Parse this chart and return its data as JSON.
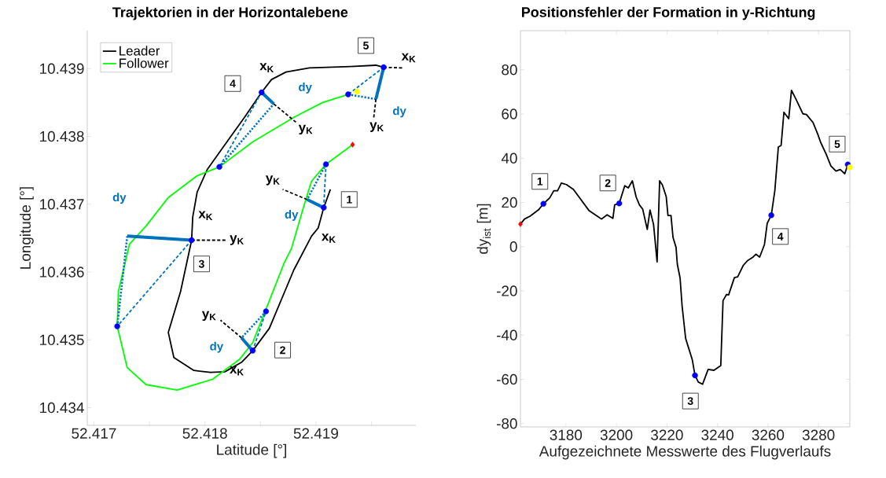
{
  "chart_data": [
    {
      "type": "line",
      "title": "Trajektorien in der Horizontalebene",
      "xlabel": "Latitude [°]",
      "ylabel": "Longitude [°]",
      "xlim": [
        52.41694,
        52.4199
      ],
      "ylim": [
        10.43374,
        10.43956
      ],
      "xticks": [
        52.417,
        {
          "value": 52.4175,
          "label": null
        },
        52.418,
        {
          "value": 52.4185,
          "label": null
        },
        52.419,
        {
          "value": 52.4195,
          "label": null
        }
      ],
      "yticks": [
        10.434,
        10.435,
        10.436,
        10.437,
        10.438,
        10.439
      ],
      "legend": "top left",
      "series": [
        {
          "name": "Leader",
          "color": "#000000",
          "x": [
            52.41913,
            52.41907,
            52.41902,
            52.41896,
            52.4188,
            52.41858,
            52.41843,
            52.41833,
            52.41818,
            52.41805,
            52.4179,
            52.41772,
            52.41767,
            52.41778,
            52.41788,
            52.41789,
            52.41793,
            52.41802,
            52.41818,
            52.41836,
            52.41851,
            52.4186,
            52.41873,
            52.41894,
            52.41931,
            52.41954,
            52.41961
          ],
          "values": [
            10.43722,
            10.43695,
            10.43665,
            10.43653,
            10.43603,
            10.43517,
            10.43484,
            10.43467,
            10.43453,
            10.43452,
            10.43455,
            10.43474,
            10.43511,
            10.43571,
            10.43647,
            10.43681,
            10.43718,
            10.43751,
            10.43788,
            10.43829,
            10.43865,
            10.43884,
            10.43895,
            10.43901,
            10.43903,
            10.43905,
            10.43902
          ]
        },
        {
          "name": "Follower",
          "color": "#00ff00",
          "x": [
            52.41933,
            52.41909,
            52.41896,
            52.41889,
            52.41878,
            52.41871,
            52.4186,
            52.41853,
            52.41843,
            52.41831,
            52.41807,
            52.41775,
            52.41747,
            52.4173,
            52.41721,
            52.41722,
            52.41732,
            52.41747,
            52.41767,
            52.41793,
            52.41813,
            52.41843,
            52.41881,
            52.41906,
            52.41929
          ],
          "values": [
            10.43788,
            10.43759,
            10.43734,
            10.43697,
            10.43635,
            10.43612,
            10.43566,
            10.43537,
            10.43496,
            10.43471,
            10.43442,
            10.43426,
            10.43434,
            10.43459,
            10.4352,
            10.43571,
            10.43641,
            10.43668,
            10.4371,
            10.43742,
            10.43755,
            10.43792,
            10.43829,
            10.4385,
            10.43862
          ]
        },
        {
          "color": "#0072bd",
          "line_style": "dashed",
          "x": [
            52.41907,
            52.41909,
            null,
            52.41843,
            52.41855,
            null,
            52.41788,
            52.41721,
            null,
            52.41851,
            52.41813,
            null,
            52.41961,
            52.41929
          ],
          "values": [
            10.43695,
            10.43759,
            null,
            10.43484,
            10.43542,
            null,
            10.43647,
            10.4352,
            null,
            10.43865,
            10.43755,
            null,
            10.43902,
            10.43862
          ]
        },
        {
          "color": "#0072bd",
          "line_style": "dotted",
          "x": [
            52.41909,
            52.41892,
            null,
            52.41855,
            52.41833,
            null,
            52.41721,
            52.4173,
            null,
            52.41813,
            52.41862,
            null,
            52.41929,
            52.41954
          ],
          "values": [
            10.43759,
            10.43707,
            null,
            10.43542,
            10.43503,
            null,
            10.4352,
            10.43653,
            null,
            10.43755,
            10.43848,
            null,
            10.43862,
            10.43855
          ]
        },
        {
          "color": "#0072bd",
          "line_style": "solid",
          "x": [
            52.41907,
            52.41892,
            null,
            52.41843,
            52.41833,
            null,
            52.41788,
            52.4173,
            null,
            52.41851,
            52.41862,
            null,
            52.41961,
            52.41954
          ],
          "values": [
            10.43695,
            10.43707,
            null,
            10.43484,
            10.43503,
            null,
            10.43647,
            10.43653,
            null,
            10.43865,
            10.43848,
            null,
            10.43902,
            10.43855
          ]
        },
        {
          "color": "#000000",
          "line_style": "dashed",
          "x": [
            52.41892,
            52.4187,
            null,
            52.41833,
            52.41814,
            null,
            52.41788,
            52.4182,
            null,
            52.41862,
            52.41882,
            null,
            52.41954,
            52.41952,
            null,
            52.41961,
            52.41979
          ],
          "values": [
            10.43707,
            10.43722,
            null,
            10.43503,
            10.43529,
            null,
            10.43647,
            10.43647,
            null,
            10.43848,
            10.43821,
            null,
            10.43855,
            10.43827,
            null,
            10.43902,
            10.43901
          ]
        },
        {
          "type": "scatter",
          "marker": "circle",
          "color": "#0000ff",
          "x": [
            52.41907,
            52.41843,
            52.41788,
            52.41851,
            52.41961,
            52.41909,
            52.41855,
            52.41721,
            52.41813,
            52.41929
          ],
          "values": [
            10.43695,
            10.43484,
            10.43647,
            10.43865,
            10.43902,
            10.43759,
            10.43542,
            10.4352,
            10.43755,
            10.43862
          ]
        },
        {
          "type": "scatter",
          "marker": "diamond",
          "color": "#ff0000",
          "x": [
            52.41933
          ],
          "values": [
            10.43788
          ]
        },
        {
          "type": "scatter",
          "marker": "circle",
          "color": "#ffff00",
          "x": [
            52.41937
          ],
          "values": [
            10.43866
          ]
        }
      ],
      "annotations": [
        {
          "text": "1",
          "x": 52.4193,
          "y": 10.43707
        },
        {
          "text": "2",
          "x": 52.4187,
          "y": 10.43485
        },
        {
          "text": "3",
          "x": 52.41797,
          "y": 10.43612
        },
        {
          "text": "4",
          "x": 52.41825,
          "y": 10.43878
        },
        {
          "text": "5",
          "x": 52.41945,
          "y": 10.43934
        },
        {
          "text": "x$_{K}$",
          "x": 52.41902,
          "y": 10.43665
        },
        {
          "text": "x$_{K}$",
          "x": 52.41833,
          "y": 10.43467
        },
        {
          "text": "x$_{K}$",
          "x": 52.41789,
          "y": 10.43681
        },
        {
          "text": "x$_{K}$",
          "x": 52.4186,
          "y": 10.43884
        },
        {
          "text": "x$_{K}$",
          "x": 52.41979,
          "y": 10.43901
        },
        {
          "text": "y$_{K}$",
          "x": 52.4187,
          "y": 10.43722
        },
        {
          "text": "y$_{K}$",
          "x": 52.41814,
          "y": 10.43529
        },
        {
          "text": "y$_{K}$",
          "x": 52.4182,
          "y": 10.43647
        },
        {
          "text": "y$_{K}$",
          "x": 52.41882,
          "y": 10.43821
        },
        {
          "text": "y$_{K}$",
          "x": 52.41952,
          "y": 10.43827
        },
        {
          "text": "dy",
          "x": 52.41892,
          "y": 10.43707
        },
        {
          "text": "dy",
          "x": 52.41833,
          "y": 10.43503
        },
        {
          "text": "dy",
          "x": 52.4173,
          "y": 10.43653
        },
        {
          "text": "dy",
          "x": 52.41862,
          "y": 10.43848
        },
        {
          "text": "dy",
          "x": 52.41954,
          "y": 10.43855
        }
      ]
    },
    {
      "type": "line",
      "title": "Positionsfehler der Formation in y-Richtung",
      "xlabel": "Aufgezeichnete Messwerte des Flugverlaufs",
      "ylabel": "dy$_{ist}$ [m]",
      "xlim": [
        3162,
        3292.4
      ],
      "ylim": [
        -81.5,
        97.7
      ],
      "xticks": [
        3180,
        3200,
        3220,
        3240,
        3260,
        3280
      ],
      "yticks": [
        -80,
        -60,
        -40,
        -20,
        0,
        20,
        40,
        60,
        80
      ],
      "series": [
        {
          "color": "#000000",
          "x": [
            3162,
            3163.6,
            3165.8,
            3169.1,
            3171.1,
            3173.6,
            3175.2,
            3176.7,
            3178.2,
            3180.2,
            3183,
            3185.8,
            3189.1,
            3194.1,
            3196.3,
            3198.6,
            3199.3,
            3201.1,
            3203.3,
            3204.7,
            3206.3,
            3207.8,
            3209.1,
            3210.4,
            3212.2,
            3213.3,
            3214.7,
            3216.1,
            3217.1,
            3218.2,
            3219.7,
            3220.4,
            3221.6,
            3222.4,
            3223.6,
            3224.1,
            3225.2,
            3226,
            3227.4,
            3228.6,
            3230,
            3231.1,
            3232.4,
            3234.1,
            3236.3,
            3238.6,
            3241.3,
            3242.2,
            3243.6,
            3244.4,
            3246.7,
            3248,
            3250.2,
            3251.9,
            3254.1,
            3255.2,
            3256.7,
            3258.6,
            3259.7,
            3261.3,
            3262.7,
            3264.1,
            3265.2,
            3266.3,
            3268.2,
            3269.3,
            3271.3,
            3273.8,
            3275.2,
            3277.8,
            3279.7,
            3280.8,
            3283,
            3284.9,
            3286.9,
            3288.6,
            3290.4,
            3291.6
          ],
          "values": [
            10.2,
            12.5,
            13.8,
            16.6,
            19.4,
            22.1,
            25.3,
            25.3,
            28.8,
            28.1,
            25.9,
            21.5,
            16.4,
            12.5,
            14.4,
            12.8,
            18.9,
            19.6,
            27.6,
            26.6,
            29.8,
            22.5,
            18.9,
            17,
            7.8,
            16.6,
            10,
            -6.9,
            29.8,
            27.9,
            22.7,
            14.1,
            14.1,
            4.2,
            -0.3,
            -7.9,
            -14.2,
            -26.9,
            -41.5,
            -45.9,
            -51,
            -58.2,
            -61.2,
            -62.2,
            -55.5,
            -55.9,
            -53.8,
            -24.4,
            -21.6,
            -21.8,
            -14,
            -13.6,
            -8.5,
            -6.3,
            -4.7,
            -3.4,
            -4.7,
            1,
            10.6,
            14.2,
            25.3,
            45.1,
            45.8,
            60.8,
            57.9,
            70.7,
            66.2,
            60.1,
            59.8,
            56.2,
            50.9,
            47.3,
            41.9,
            36.5,
            34.2,
            34.9,
            33,
            37.2
          ]
        },
        {
          "type": "scatter",
          "marker": "circle",
          "color": "#0000ff",
          "x": [
            3171.1,
            3201.1,
            3231.1,
            3261.3,
            3291.6
          ],
          "values": [
            19.4,
            19.6,
            -58.2,
            14.2,
            37.2
          ]
        },
        {
          "type": "scatter",
          "marker": "diamond",
          "color": "#ff0000",
          "x": [
            3162
          ],
          "values": [
            10.2
          ]
        },
        {
          "type": "scatter",
          "marker": "circle",
          "color": "#ffff00",
          "x": [
            3292.4
          ],
          "values": [
            35.9
          ]
        }
      ],
      "annotations": [
        {
          "text": "1",
          "x": 3169.7,
          "y": 29.5
        },
        {
          "text": "2",
          "x": 3196.6,
          "y": 28.8
        },
        {
          "text": "3",
          "x": 3229.3,
          "y": -69.8
        },
        {
          "text": "4",
          "x": 3264.9,
          "y": 4.6
        },
        {
          "text": "5",
          "x": 3287.4,
          "y": 46.4
        }
      ]
    }
  ]
}
